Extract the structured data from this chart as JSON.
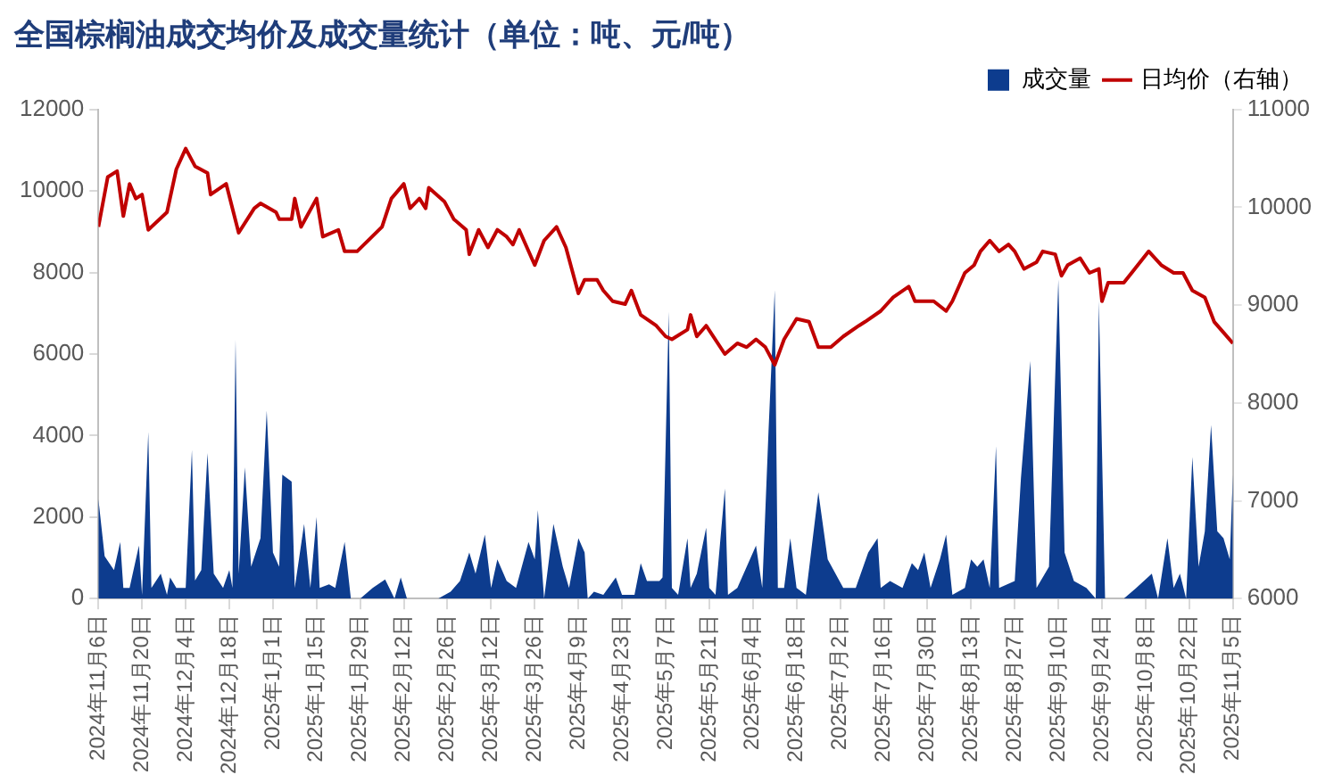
{
  "chart_data": {
    "type": "area",
    "title": "全国棕榈油成交均价及成交量统计（单位：吨、元/吨）",
    "legend": "top",
    "grid": false,
    "xlim": [
      "2024-11-06",
      "2025-11-05"
    ],
    "xticks": [
      {
        "value": "2024-11-06",
        "label": "2024年11月6日"
      },
      {
        "value": "2024-11-20",
        "label": "2024年11月20日"
      },
      {
        "value": "2024-12-04",
        "label": "2024年12月4日"
      },
      {
        "value": "2024-12-18",
        "label": "2024年12月18日"
      },
      {
        "value": "2025-01-01",
        "label": "2025年1月1日"
      },
      {
        "value": "2025-01-15",
        "label": "2025年1月15日"
      },
      {
        "value": "2025-01-29",
        "label": "2025年1月29日"
      },
      {
        "value": "2025-02-12",
        "label": "2025年2月12日"
      },
      {
        "value": "2025-02-26",
        "label": "2025年2月26日"
      },
      {
        "value": "2025-03-12",
        "label": "2025年3月12日"
      },
      {
        "value": "2025-03-26",
        "label": "2025年3月26日"
      },
      {
        "value": "2025-04-09",
        "label": "2025年4月9日"
      },
      {
        "value": "2025-04-23",
        "label": "2025年4月23日"
      },
      {
        "value": "2025-05-07",
        "label": "2025年5月7日"
      },
      {
        "value": "2025-05-21",
        "label": "2025年5月21日"
      },
      {
        "value": "2025-06-04",
        "label": "2025年6月4日"
      },
      {
        "value": "2025-06-18",
        "label": "2025年6月18日"
      },
      {
        "value": "2025-07-02",
        "label": "2025年7月2日"
      },
      {
        "value": "2025-07-16",
        "label": "2025年7月16日"
      },
      {
        "value": "2025-07-30",
        "label": "2025年7月30日"
      },
      {
        "value": "2025-08-13",
        "label": "2025年8月13日"
      },
      {
        "value": "2025-08-27",
        "label": "2025年8月27日"
      },
      {
        "value": "2025-09-10",
        "label": "2025年9月10日"
      },
      {
        "value": "2025-09-24",
        "label": "2025年9月24日"
      },
      {
        "value": "2025-10-08",
        "label": "2025年10月8日"
      },
      {
        "value": "2025-10-22",
        "label": "2025年10月22日"
      },
      {
        "value": "2025-11-05",
        "label": "2025年11月5日"
      }
    ],
    "ylim": [
      0,
      12000
    ],
    "yticks": [
      0,
      2000,
      4000,
      6000,
      8000,
      10000,
      12000
    ],
    "y2lim": [
      6000,
      11000
    ],
    "y2ticks": [
      6000,
      7000,
      8000,
      9000,
      10000,
      11000
    ],
    "series": [
      {
        "name": "成交量",
        "type": "area",
        "color": "#0d3c8e",
        "x": [
          "2024-11-06",
          "2024-11-08",
          "2024-11-11",
          "2024-11-13",
          "2024-11-14",
          "2024-11-16",
          "2024-11-19",
          "2024-11-20",
          "2024-11-22",
          "2024-11-23",
          "2024-11-26",
          "2024-11-28",
          "2024-11-29",
          "2024-12-01",
          "2024-12-04",
          "2024-12-06",
          "2024-12-07",
          "2024-12-09",
          "2024-12-11",
          "2024-12-13",
          "2024-12-16",
          "2024-12-18",
          "2024-12-19",
          "2024-12-20",
          "2024-12-21",
          "2024-12-23",
          "2024-12-25",
          "2024-12-28",
          "2024-12-30",
          "2025-01-01",
          "2025-01-03",
          "2025-01-04",
          "2025-01-07",
          "2025-01-08",
          "2025-01-11",
          "2025-01-13",
          "2025-01-15",
          "2025-01-16",
          "2025-01-19",
          "2025-01-21",
          "2025-01-24",
          "2025-01-26",
          "2025-01-29",
          "2025-02-02",
          "2025-02-06",
          "2025-02-09",
          "2025-02-10",
          "2025-02-11",
          "2025-02-13",
          "2025-02-17",
          "2025-02-23",
          "2025-02-27",
          "2025-03-02",
          "2025-03-05",
          "2025-03-07",
          "2025-03-10",
          "2025-03-12",
          "2025-03-14",
          "2025-03-17",
          "2025-03-20",
          "2025-03-24",
          "2025-03-26",
          "2025-03-27",
          "2025-03-29",
          "2025-04-01",
          "2025-04-04",
          "2025-04-06",
          "2025-04-09",
          "2025-04-11",
          "2025-04-12",
          "2025-04-14",
          "2025-04-17",
          "2025-04-21",
          "2025-04-23",
          "2025-04-27",
          "2025-04-29",
          "2025-05-01",
          "2025-05-05",
          "2025-05-06",
          "2025-05-08",
          "2025-05-09",
          "2025-05-11",
          "2025-05-14",
          "2025-05-15",
          "2025-05-17",
          "2025-05-20",
          "2025-05-21",
          "2025-05-23",
          "2025-05-26",
          "2025-05-27",
          "2025-05-30",
          "2025-06-02",
          "2025-06-05",
          "2025-06-07",
          "2025-06-09",
          "2025-06-11",
          "2025-06-12",
          "2025-06-14",
          "2025-06-16",
          "2025-06-18",
          "2025-06-21",
          "2025-06-25",
          "2025-06-28",
          "2025-07-03",
          "2025-07-07",
          "2025-07-11",
          "2025-07-14",
          "2025-07-15",
          "2025-07-18",
          "2025-07-22",
          "2025-07-25",
          "2025-07-27",
          "2025-07-29",
          "2025-07-31",
          "2025-08-03",
          "2025-08-05",
          "2025-08-07",
          "2025-08-11",
          "2025-08-13",
          "2025-08-15",
          "2025-08-17",
          "2025-08-19",
          "2025-08-21",
          "2025-08-22",
          "2025-08-27",
          "2025-08-29",
          "2025-09-01",
          "2025-09-03",
          "2025-09-07",
          "2025-09-10",
          "2025-09-12",
          "2025-09-15",
          "2025-09-19",
          "2025-09-22",
          "2025-09-23",
          "2025-09-25",
          "2025-10-01",
          "2025-10-05",
          "2025-10-10",
          "2025-10-12",
          "2025-10-15",
          "2025-10-17",
          "2025-10-19",
          "2025-10-21",
          "2025-10-23",
          "2025-10-25",
          "2025-10-27",
          "2025-10-29",
          "2025-10-31",
          "2025-11-02",
          "2025-11-04",
          "2025-11-05"
        ],
        "values": [
          2440,
          1040,
          700,
          1390,
          260,
          260,
          1300,
          90,
          4090,
          260,
          610,
          90,
          520,
          260,
          260,
          3650,
          440,
          700,
          3570,
          610,
          260,
          700,
          260,
          6350,
          610,
          3220,
          780,
          1480,
          4610,
          1130,
          780,
          3040,
          2870,
          260,
          1830,
          260,
          2000,
          260,
          350,
          260,
          1390,
          0,
          0,
          260,
          470,
          0,
          260,
          520,
          0,
          0,
          0,
          170,
          430,
          1130,
          610,
          1570,
          260,
          960,
          430,
          260,
          1390,
          960,
          2170,
          0,
          1830,
          780,
          260,
          1480,
          1130,
          0,
          170,
          90,
          520,
          90,
          90,
          870,
          430,
          430,
          520,
          7040,
          260,
          90,
          1480,
          260,
          610,
          1740,
          260,
          90,
          2700,
          90,
          260,
          780,
          1300,
          260,
          4090,
          7570,
          260,
          260,
          1480,
          260,
          90,
          2610,
          960,
          260,
          260,
          1130,
          1480,
          260,
          430,
          260,
          870,
          700,
          1130,
          260,
          960,
          1570,
          90,
          260,
          960,
          780,
          960,
          260,
          3740,
          260,
          430,
          2960,
          5830,
          260,
          780,
          7830,
          1130,
          430,
          260,
          0,
          7300,
          0,
          0,
          260,
          610,
          0,
          1480,
          260,
          610,
          0,
          3480,
          780,
          1650,
          4260,
          1650,
          1480,
          960,
          3040
        ]
      },
      {
        "name": "日均价（右轴）",
        "type": "line",
        "axis": "y2",
        "color": "#c00000",
        "x": [
          "2024-11-06",
          "2024-11-09",
          "2024-11-12",
          "2024-11-14",
          "2024-11-16",
          "2024-11-18",
          "2024-11-20",
          "2024-11-22",
          "2024-11-28",
          "2024-12-01",
          "2024-12-04",
          "2024-12-07",
          "2024-12-11",
          "2024-12-12",
          "2024-12-17",
          "2024-12-21",
          "2024-12-26",
          "2024-12-28",
          "2025-01-02",
          "2025-01-03",
          "2025-01-07",
          "2025-01-08",
          "2025-01-10",
          "2025-01-15",
          "2025-01-17",
          "2025-01-22",
          "2025-01-24",
          "2025-01-28",
          "2025-02-05",
          "2025-02-08",
          "2025-02-12",
          "2025-02-14",
          "2025-02-17",
          "2025-02-19",
          "2025-02-20",
          "2025-02-25",
          "2025-02-28",
          "2025-03-04",
          "2025-03-05",
          "2025-03-08",
          "2025-03-11",
          "2025-03-14",
          "2025-03-17",
          "2025-03-19",
          "2025-03-21",
          "2025-03-26",
          "2025-03-29",
          "2025-04-02",
          "2025-04-05",
          "2025-04-09",
          "2025-04-11",
          "2025-04-15",
          "2025-04-17",
          "2025-04-20",
          "2025-04-24",
          "2025-04-26",
          "2025-04-29",
          "2025-05-04",
          "2025-05-07",
          "2025-05-09",
          "2025-05-14",
          "2025-05-15",
          "2025-05-17",
          "2025-05-20",
          "2025-05-26",
          "2025-05-30",
          "2025-06-02",
          "2025-06-05",
          "2025-06-08",
          "2025-06-11",
          "2025-06-14",
          "2025-06-18",
          "2025-06-22",
          "2025-06-25",
          "2025-06-29",
          "2025-07-03",
          "2025-07-08",
          "2025-07-10",
          "2025-07-15",
          "2025-07-19",
          "2025-07-24",
          "2025-07-26",
          "2025-08-01",
          "2025-08-05",
          "2025-08-07",
          "2025-08-11",
          "2025-08-14",
          "2025-08-16",
          "2025-08-19",
          "2025-08-22",
          "2025-08-25",
          "2025-08-27",
          "2025-08-30",
          "2025-09-03",
          "2025-09-05",
          "2025-09-09",
          "2025-09-11",
          "2025-09-13",
          "2025-09-17",
          "2025-09-20",
          "2025-09-23",
          "2025-09-24",
          "2025-09-26",
          "2025-10-01",
          "2025-10-09",
          "2025-10-13",
          "2025-10-17",
          "2025-10-20",
          "2025-10-23",
          "2025-10-27",
          "2025-10-30",
          "2025-11-02",
          "2025-11-05"
        ],
        "values": [
          9800,
          10310,
          10370,
          9910,
          10240,
          10090,
          10130,
          9770,
          9950,
          10390,
          10600,
          10420,
          10350,
          10130,
          10240,
          9740,
          9990,
          10040,
          9950,
          9880,
          9880,
          10090,
          9800,
          10090,
          9700,
          9770,
          9550,
          9550,
          9800,
          10090,
          10240,
          9990,
          10090,
          9990,
          10200,
          10060,
          9880,
          9770,
          9520,
          9770,
          9590,
          9770,
          9700,
          9620,
          9770,
          9410,
          9660,
          9800,
          9590,
          9120,
          9260,
          9260,
          9150,
          9040,
          9010,
          9150,
          8900,
          8790,
          8680,
          8650,
          8750,
          8900,
          8680,
          8790,
          8500,
          8610,
          8570,
          8650,
          8570,
          8390,
          8650,
          8860,
          8830,
          8570,
          8570,
          8680,
          8790,
          8830,
          8940,
          9080,
          9190,
          9040,
          9040,
          8940,
          9040,
          9330,
          9410,
          9550,
          9660,
          9550,
          9620,
          9550,
          9370,
          9440,
          9550,
          9520,
          9300,
          9410,
          9480,
          9330,
          9370,
          9040,
          9230,
          9230,
          9550,
          9410,
          9330,
          9330,
          9150,
          9080,
          8830,
          8720,
          8610
        ]
      }
    ]
  }
}
